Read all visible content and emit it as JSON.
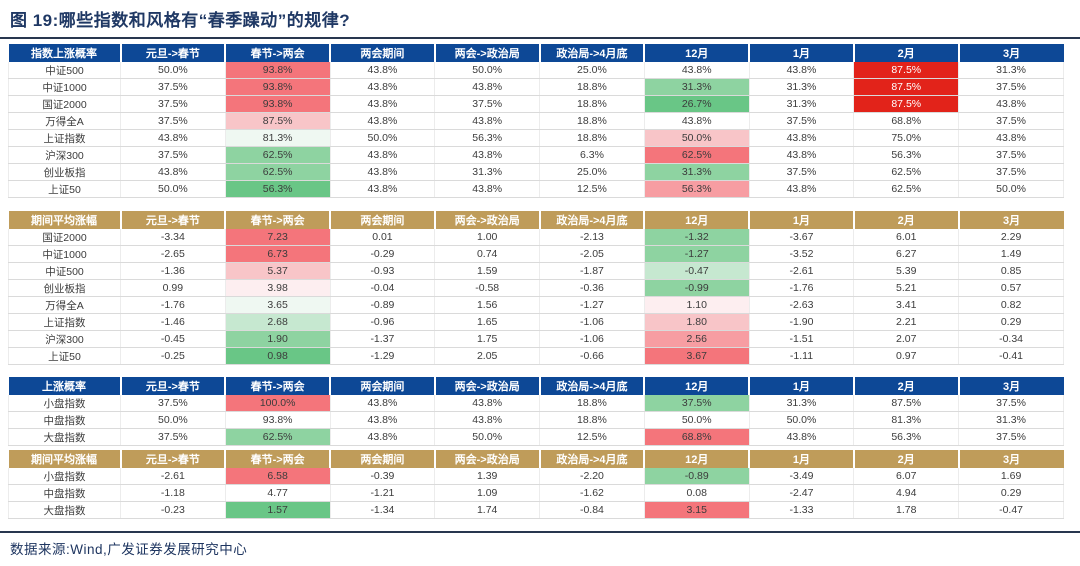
{
  "title": "图 19:哪些指数和风格有“春季躁动”的规律?",
  "footer": "数据来源:Wind,广发证券发展研究中心",
  "columns": [
    "元旦->春节",
    "春节->两会",
    "两会期间",
    "两会->政治局",
    "政治局->4月底",
    "12月",
    "1月",
    "2月",
    "3月"
  ],
  "palette": {
    "R": {
      "bg": "#e2231a",
      "fg": "#ffffff"
    },
    "r1": {
      "bg": "#f4757b"
    },
    "r2": {
      "bg": "#f79da2"
    },
    "r3": {
      "bg": "#f8c5c8"
    },
    "rw": {
      "bg": "#fdeef0"
    },
    "w": {
      "bg": "#ffffff"
    },
    "gw": {
      "bg": "#eff8f2"
    },
    "g1": {
      "bg": "#c6e8d0"
    },
    "g2": {
      "bg": "#8ed3a1"
    },
    "g3": {
      "bg": "#69c686"
    }
  },
  "tables": [
    {
      "section": "指数上涨概率",
      "theme": "blue",
      "rows": [
        {
          "label": "中证500",
          "cells": [
            [
              "50.0%",
              "w"
            ],
            [
              "93.8%",
              "r1"
            ],
            [
              "43.8%",
              "w"
            ],
            [
              "50.0%",
              "w"
            ],
            [
              "25.0%",
              "w"
            ],
            [
              "43.8%",
              "w"
            ],
            [
              "43.8%",
              "w"
            ],
            [
              "87.5%",
              "R"
            ],
            [
              "31.3%",
              "w"
            ]
          ]
        },
        {
          "label": "中证1000",
          "cells": [
            [
              "37.5%",
              "w"
            ],
            [
              "93.8%",
              "r1"
            ],
            [
              "43.8%",
              "w"
            ],
            [
              "43.8%",
              "w"
            ],
            [
              "18.8%",
              "w"
            ],
            [
              "31.3%",
              "g2"
            ],
            [
              "31.3%",
              "w"
            ],
            [
              "87.5%",
              "R"
            ],
            [
              "37.5%",
              "w"
            ]
          ]
        },
        {
          "label": "国证2000",
          "cells": [
            [
              "37.5%",
              "w"
            ],
            [
              "93.8%",
              "r1"
            ],
            [
              "43.8%",
              "w"
            ],
            [
              "37.5%",
              "w"
            ],
            [
              "18.8%",
              "w"
            ],
            [
              "26.7%",
              "g3"
            ],
            [
              "31.3%",
              "w"
            ],
            [
              "87.5%",
              "R"
            ],
            [
              "43.8%",
              "w"
            ]
          ]
        },
        {
          "label": "万得全A",
          "cells": [
            [
              "37.5%",
              "w"
            ],
            [
              "87.5%",
              "r3"
            ],
            [
              "43.8%",
              "w"
            ],
            [
              "43.8%",
              "w"
            ],
            [
              "18.8%",
              "w"
            ],
            [
              "43.8%",
              "w"
            ],
            [
              "37.5%",
              "w"
            ],
            [
              "68.8%",
              "w"
            ],
            [
              "37.5%",
              "w"
            ]
          ]
        },
        {
          "label": "上证指数",
          "cells": [
            [
              "43.8%",
              "w"
            ],
            [
              "81.3%",
              "gw"
            ],
            [
              "50.0%",
              "w"
            ],
            [
              "56.3%",
              "w"
            ],
            [
              "18.8%",
              "w"
            ],
            [
              "50.0%",
              "r3"
            ],
            [
              "43.8%",
              "w"
            ],
            [
              "75.0%",
              "w"
            ],
            [
              "43.8%",
              "w"
            ]
          ]
        },
        {
          "label": "沪深300",
          "cells": [
            [
              "37.5%",
              "w"
            ],
            [
              "62.5%",
              "g2"
            ],
            [
              "43.8%",
              "w"
            ],
            [
              "43.8%",
              "w"
            ],
            [
              "6.3%",
              "w"
            ],
            [
              "62.5%",
              "r1"
            ],
            [
              "43.8%",
              "w"
            ],
            [
              "56.3%",
              "w"
            ],
            [
              "37.5%",
              "w"
            ]
          ]
        },
        {
          "label": "创业板指",
          "cells": [
            [
              "43.8%",
              "w"
            ],
            [
              "62.5%",
              "g2"
            ],
            [
              "43.8%",
              "w"
            ],
            [
              "31.3%",
              "w"
            ],
            [
              "25.0%",
              "w"
            ],
            [
              "31.3%",
              "g2"
            ],
            [
              "37.5%",
              "w"
            ],
            [
              "62.5%",
              "w"
            ],
            [
              "37.5%",
              "w"
            ]
          ]
        },
        {
          "label": "上证50",
          "cells": [
            [
              "50.0%",
              "w"
            ],
            [
              "56.3%",
              "g3"
            ],
            [
              "43.8%",
              "w"
            ],
            [
              "43.8%",
              "w"
            ],
            [
              "12.5%",
              "w"
            ],
            [
              "56.3%",
              "r2"
            ],
            [
              "43.8%",
              "w"
            ],
            [
              "62.5%",
              "w"
            ],
            [
              "50.0%",
              "w"
            ]
          ]
        }
      ]
    },
    {
      "section": "期间平均涨幅",
      "theme": "gold",
      "rows": [
        {
          "label": "国证2000",
          "cells": [
            [
              "-3.34",
              "w"
            ],
            [
              "7.23",
              "r1"
            ],
            [
              "0.01",
              "w"
            ],
            [
              "1.00",
              "w"
            ],
            [
              "-2.13",
              "w"
            ],
            [
              "-1.32",
              "g2"
            ],
            [
              "-3.67",
              "w"
            ],
            [
              "6.01",
              "w"
            ],
            [
              "2.29",
              "w"
            ]
          ]
        },
        {
          "label": "中证1000",
          "cells": [
            [
              "-2.65",
              "w"
            ],
            [
              "6.73",
              "r1"
            ],
            [
              "-0.29",
              "w"
            ],
            [
              "0.74",
              "w"
            ],
            [
              "-2.05",
              "w"
            ],
            [
              "-1.27",
              "g2"
            ],
            [
              "-3.52",
              "w"
            ],
            [
              "6.27",
              "w"
            ],
            [
              "1.49",
              "w"
            ]
          ]
        },
        {
          "label": "中证500",
          "cells": [
            [
              "-1.36",
              "w"
            ],
            [
              "5.37",
              "r3"
            ],
            [
              "-0.93",
              "w"
            ],
            [
              "1.59",
              "w"
            ],
            [
              "-1.87",
              "w"
            ],
            [
              "-0.47",
              "g1"
            ],
            [
              "-2.61",
              "w"
            ],
            [
              "5.39",
              "w"
            ],
            [
              "0.85",
              "w"
            ]
          ]
        },
        {
          "label": "创业板指",
          "cells": [
            [
              "0.99",
              "w"
            ],
            [
              "3.98",
              "rw"
            ],
            [
              "-0.04",
              "w"
            ],
            [
              "-0.58",
              "w"
            ],
            [
              "-0.36",
              "w"
            ],
            [
              "-0.99",
              "g2"
            ],
            [
              "-1.76",
              "w"
            ],
            [
              "5.21",
              "w"
            ],
            [
              "0.57",
              "w"
            ]
          ]
        },
        {
          "label": "万得全A",
          "cells": [
            [
              "-1.76",
              "w"
            ],
            [
              "3.65",
              "gw"
            ],
            [
              "-0.89",
              "w"
            ],
            [
              "1.56",
              "w"
            ],
            [
              "-1.27",
              "w"
            ],
            [
              "1.10",
              "rw"
            ],
            [
              "-2.63",
              "w"
            ],
            [
              "3.41",
              "w"
            ],
            [
              "0.82",
              "w"
            ]
          ]
        },
        {
          "label": "上证指数",
          "cells": [
            [
              "-1.46",
              "w"
            ],
            [
              "2.68",
              "g1"
            ],
            [
              "-0.96",
              "w"
            ],
            [
              "1.65",
              "w"
            ],
            [
              "-1.06",
              "w"
            ],
            [
              "1.80",
              "r3"
            ],
            [
              "-1.90",
              "w"
            ],
            [
              "2.21",
              "w"
            ],
            [
              "0.29",
              "w"
            ]
          ]
        },
        {
          "label": "沪深300",
          "cells": [
            [
              "-0.45",
              "w"
            ],
            [
              "1.90",
              "g2"
            ],
            [
              "-1.37",
              "w"
            ],
            [
              "1.75",
              "w"
            ],
            [
              "-1.06",
              "w"
            ],
            [
              "2.56",
              "r2"
            ],
            [
              "-1.51",
              "w"
            ],
            [
              "2.07",
              "w"
            ],
            [
              "-0.34",
              "w"
            ]
          ]
        },
        {
          "label": "上证50",
          "cells": [
            [
              "-0.25",
              "w"
            ],
            [
              "0.98",
              "g3"
            ],
            [
              "-1.29",
              "w"
            ],
            [
              "2.05",
              "w"
            ],
            [
              "-0.66",
              "w"
            ],
            [
              "3.67",
              "r1"
            ],
            [
              "-1.11",
              "w"
            ],
            [
              "0.97",
              "w"
            ],
            [
              "-0.41",
              "w"
            ]
          ]
        }
      ]
    },
    {
      "section": "上涨概率",
      "theme": "blue",
      "rows": [
        {
          "label": "小盘指数",
          "cells": [
            [
              "37.5%",
              "w"
            ],
            [
              "100.0%",
              "r1"
            ],
            [
              "43.8%",
              "w"
            ],
            [
              "43.8%",
              "w"
            ],
            [
              "18.8%",
              "w"
            ],
            [
              "37.5%",
              "g2"
            ],
            [
              "31.3%",
              "w"
            ],
            [
              "87.5%",
              "w"
            ],
            [
              "37.5%",
              "w"
            ]
          ]
        },
        {
          "label": "中盘指数",
          "cells": [
            [
              "50.0%",
              "w"
            ],
            [
              "93.8%",
              "w"
            ],
            [
              "43.8%",
              "w"
            ],
            [
              "43.8%",
              "w"
            ],
            [
              "18.8%",
              "w"
            ],
            [
              "50.0%",
              "w"
            ],
            [
              "50.0%",
              "w"
            ],
            [
              "81.3%",
              "w"
            ],
            [
              "31.3%",
              "w"
            ]
          ]
        },
        {
          "label": "大盘指数",
          "cells": [
            [
              "37.5%",
              "w"
            ],
            [
              "62.5%",
              "g2"
            ],
            [
              "43.8%",
              "w"
            ],
            [
              "50.0%",
              "w"
            ],
            [
              "12.5%",
              "w"
            ],
            [
              "68.8%",
              "r1"
            ],
            [
              "43.8%",
              "w"
            ],
            [
              "56.3%",
              "w"
            ],
            [
              "37.5%",
              "w"
            ]
          ]
        }
      ]
    },
    {
      "section": "期间平均涨幅",
      "theme": "gold",
      "rows": [
        {
          "label": "小盘指数",
          "cells": [
            [
              "-2.61",
              "w"
            ],
            [
              "6.58",
              "r1"
            ],
            [
              "-0.39",
              "w"
            ],
            [
              "1.39",
              "w"
            ],
            [
              "-2.20",
              "w"
            ],
            [
              "-0.89",
              "g2"
            ],
            [
              "-3.49",
              "w"
            ],
            [
              "6.07",
              "w"
            ],
            [
              "1.69",
              "w"
            ]
          ]
        },
        {
          "label": "中盘指数",
          "cells": [
            [
              "-1.18",
              "w"
            ],
            [
              "4.77",
              "w"
            ],
            [
              "-1.21",
              "w"
            ],
            [
              "1.09",
              "w"
            ],
            [
              "-1.62",
              "w"
            ],
            [
              "0.08",
              "w"
            ],
            [
              "-2.47",
              "w"
            ],
            [
              "4.94",
              "w"
            ],
            [
              "0.29",
              "w"
            ]
          ]
        },
        {
          "label": "大盘指数",
          "cells": [
            [
              "-0.23",
              "w"
            ],
            [
              "1.57",
              "g3"
            ],
            [
              "-1.34",
              "w"
            ],
            [
              "1.74",
              "w"
            ],
            [
              "-0.84",
              "w"
            ],
            [
              "3.15",
              "r1"
            ],
            [
              "-1.33",
              "w"
            ],
            [
              "1.78",
              "w"
            ],
            [
              "-0.47",
              "w"
            ]
          ]
        }
      ]
    }
  ]
}
